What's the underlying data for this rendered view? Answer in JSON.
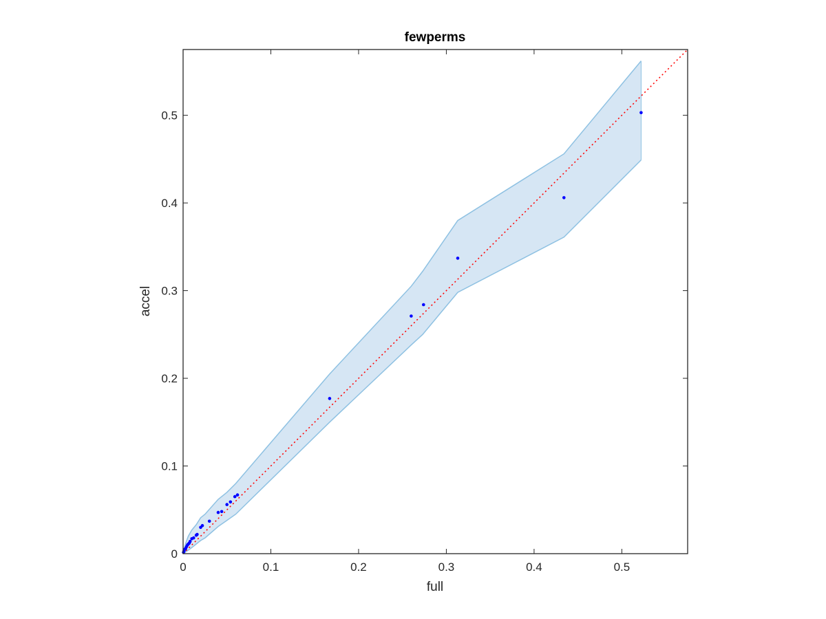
{
  "chart_data": {
    "type": "scatter",
    "title": "fewperms",
    "xlabel": "full",
    "ylabel": "accel",
    "xlim": [
      0,
      0.575
    ],
    "ylim": [
      0,
      0.575
    ],
    "xticks": [
      0,
      0.1,
      0.2,
      0.3,
      0.4,
      0.5
    ],
    "yticks": [
      0,
      0.1,
      0.2,
      0.3,
      0.4,
      0.5
    ],
    "xtick_labels": [
      "0",
      "0.1",
      "0.2",
      "0.3",
      "0.4",
      "0.5"
    ],
    "ytick_labels": [
      "0",
      "0.1",
      "0.2",
      "0.3",
      "0.4",
      "0.5"
    ],
    "grid": false,
    "colors": {
      "points": "#0000ff",
      "band_fill": "#d6e6f4",
      "band_line": "#8ec1e2",
      "reference_line": "#ff0000"
    },
    "reference_line": {
      "style": "dotted",
      "from": [
        0,
        0
      ],
      "to": [
        0.575,
        0.575
      ]
    },
    "band": {
      "x": [
        0,
        0.003,
        0.006,
        0.01,
        0.015,
        0.02,
        0.025,
        0.04,
        0.05,
        0.06,
        0.167,
        0.26,
        0.273,
        0.313,
        0.434,
        0.522
      ],
      "upper": [
        0.002,
        0.012,
        0.02,
        0.027,
        0.033,
        0.041,
        0.045,
        0.062,
        0.07,
        0.08,
        0.205,
        0.305,
        0.322,
        0.38,
        0.456,
        0.562
      ],
      "lower": [
        0,
        0.002,
        0.004,
        0.007,
        0.011,
        0.015,
        0.018,
        0.031,
        0.038,
        0.045,
        0.15,
        0.238,
        0.25,
        0.298,
        0.361,
        0.449
      ]
    },
    "points": {
      "x": [
        0.0005,
        0.001,
        0.002,
        0.003,
        0.004,
        0.005,
        0.006,
        0.007,
        0.008,
        0.01,
        0.012,
        0.015,
        0.016,
        0.02,
        0.022,
        0.03,
        0.04,
        0.044,
        0.05,
        0.054,
        0.059,
        0.062,
        0.167,
        0.26,
        0.274,
        0.313,
        0.434,
        0.522
      ],
      "y": [
        0.0015,
        0.003,
        0.005,
        0.006,
        0.008,
        0.01,
        0.011,
        0.012,
        0.014,
        0.017,
        0.018,
        0.021,
        0.022,
        0.03,
        0.032,
        0.037,
        0.047,
        0.048,
        0.056,
        0.059,
        0.065,
        0.067,
        0.177,
        0.271,
        0.284,
        0.337,
        0.406,
        0.503
      ]
    }
  }
}
